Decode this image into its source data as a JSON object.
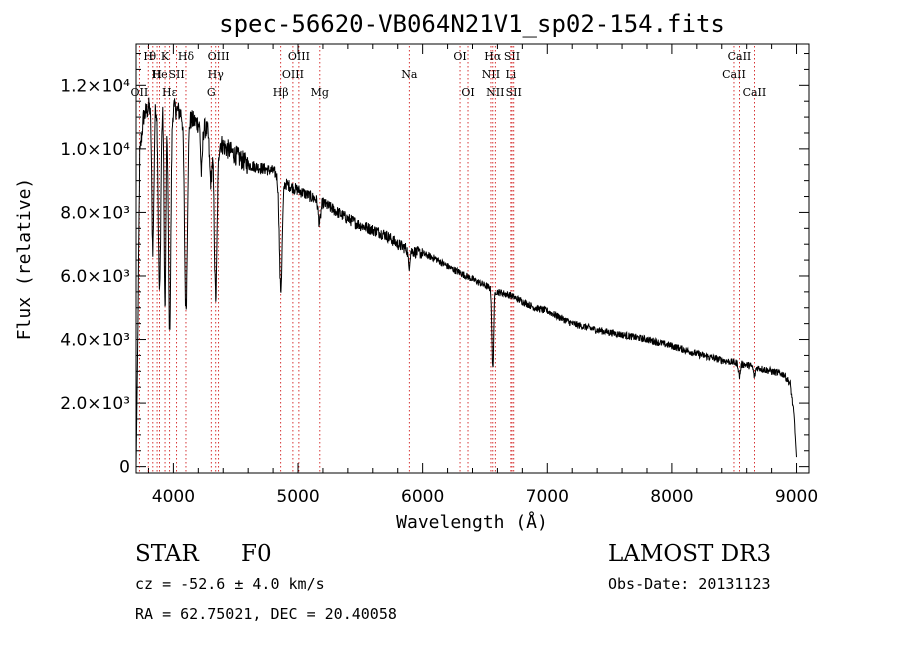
{
  "chart_data": {
    "type": "line",
    "title": "spec-56620-VB064N21V1_sp02-154.fits",
    "xlabel": "Wavelength (Å)",
    "ylabel": "Flux (relative)",
    "xlim": [
      3700,
      9100
    ],
    "ylim": [
      -200,
      13300
    ],
    "xticks": [
      {
        "value": 4000,
        "label": "4000"
      },
      {
        "value": 5000,
        "label": "5000"
      },
      {
        "value": 6000,
        "label": "6000"
      },
      {
        "value": 7000,
        "label": "7000"
      },
      {
        "value": 8000,
        "label": "8000"
      },
      {
        "value": 9000,
        "label": "9000"
      }
    ],
    "yticks": [
      {
        "value": 0,
        "label": "0"
      },
      {
        "value": 2000,
        "label": "2.0×10³"
      },
      {
        "value": 4000,
        "label": "4.0×10³"
      },
      {
        "value": 6000,
        "label": "6.0×10³"
      },
      {
        "value": 8000,
        "label": "8.0×10³"
      },
      {
        "value": 10000,
        "label": "1.0×10⁴"
      },
      {
        "value": 12000,
        "label": "1.2×10⁴"
      }
    ],
    "continuum": [
      [
        3700,
        0
      ],
      [
        3710,
        2800
      ],
      [
        3730,
        9800
      ],
      [
        3760,
        11000
      ],
      [
        3800,
        11300
      ],
      [
        3900,
        11500
      ],
      [
        4000,
        11300
      ],
      [
        4100,
        11000
      ],
      [
        4200,
        10800
      ],
      [
        4300,
        10500
      ],
      [
        4400,
        10100
      ],
      [
        4500,
        9800
      ],
      [
        4600,
        9500
      ],
      [
        4700,
        9400
      ],
      [
        4800,
        9300
      ],
      [
        4900,
        8900
      ],
      [
        5000,
        8700
      ],
      [
        5100,
        8500
      ],
      [
        5200,
        8300
      ],
      [
        5300,
        8050
      ],
      [
        5400,
        7800
      ],
      [
        5500,
        7600
      ],
      [
        5600,
        7450
      ],
      [
        5700,
        7300
      ],
      [
        5800,
        7000
      ],
      [
        5900,
        6800
      ],
      [
        6000,
        6700
      ],
      [
        6100,
        6550
      ],
      [
        6200,
        6300
      ],
      [
        6300,
        6100
      ],
      [
        6400,
        5900
      ],
      [
        6500,
        5700
      ],
      [
        6600,
        5500
      ],
      [
        6700,
        5400
      ],
      [
        6800,
        5200
      ],
      [
        6900,
        5000
      ],
      [
        7000,
        4900
      ],
      [
        7200,
        4500
      ],
      [
        7400,
        4300
      ],
      [
        7600,
        4150
      ],
      [
        7800,
        4000
      ],
      [
        8000,
        3800
      ],
      [
        8200,
        3550
      ],
      [
        8400,
        3350
      ],
      [
        8600,
        3200
      ],
      [
        8700,
        3100
      ],
      [
        8800,
        3000
      ],
      [
        8900,
        2900
      ],
      [
        8950,
        2600
      ],
      [
        8980,
        1600
      ],
      [
        9000,
        300
      ]
    ],
    "absorption_features": [
      {
        "center": 3835,
        "depth": 4500,
        "width": 12
      },
      {
        "center": 3889,
        "depth": 6000,
        "width": 14
      },
      {
        "center": 3933,
        "depth": 6500,
        "width": 10
      },
      {
        "center": 3970,
        "depth": 7000,
        "width": 14
      },
      {
        "center": 4101,
        "depth": 6000,
        "width": 16
      },
      {
        "center": 4226,
        "depth": 1500,
        "width": 10
      },
      {
        "center": 4300,
        "depth": 1500,
        "width": 14
      },
      {
        "center": 4340,
        "depth": 5000,
        "width": 16
      },
      {
        "center": 4861,
        "depth": 3500,
        "width": 16
      },
      {
        "center": 5172,
        "depth": 700,
        "width": 14
      },
      {
        "center": 5890,
        "depth": 500,
        "width": 10
      },
      {
        "center": 6563,
        "depth": 2500,
        "width": 10
      },
      {
        "center": 8542,
        "depth": 400,
        "width": 10
      },
      {
        "center": 8662,
        "depth": 300,
        "width": 10
      }
    ],
    "reference_lines": [
      {
        "wavelength": 3727,
        "label": "OII",
        "row": 3
      },
      {
        "wavelength": 3798,
        "label": "H",
        "row": 1
      },
      {
        "wavelength": 3835,
        "label": "θ",
        "row": 1
      },
      {
        "wavelength": 3869,
        "label": "H",
        "row": 2
      },
      {
        "wavelength": 3889,
        "label": "He",
        "row": 2
      },
      {
        "wavelength": 3933,
        "label": "K",
        "row": 1
      },
      {
        "wavelength": 3970,
        "label": "Hε",
        "row": 3
      },
      {
        "wavelength": 4026,
        "label": "SII",
        "row": 2
      },
      {
        "wavelength": 4101,
        "label": "Hδ",
        "row": 1
      },
      {
        "wavelength": 4304,
        "label": "G",
        "row": 3
      },
      {
        "wavelength": 4340,
        "label": "Hγ",
        "row": 2
      },
      {
        "wavelength": 4363,
        "label": "OIII",
        "row": 1
      },
      {
        "wavelength": 4861,
        "label": "Hβ",
        "row": 3
      },
      {
        "wavelength": 4959,
        "label": "OIII",
        "row": 2
      },
      {
        "wavelength": 5007,
        "label": "OIII",
        "row": 1
      },
      {
        "wavelength": 5175,
        "label": "Mg",
        "row": 3
      },
      {
        "wavelength": 5893,
        "label": "Na",
        "row": 2
      },
      {
        "wavelength": 6300,
        "label": "OI",
        "row": 1
      },
      {
        "wavelength": 6364,
        "label": "OI",
        "row": 3
      },
      {
        "wavelength": 6548,
        "label": "NII",
        "row": 2
      },
      {
        "wavelength": 6563,
        "label": "Hα",
        "row": 1
      },
      {
        "wavelength": 6583,
        "label": "NII",
        "row": 3
      },
      {
        "wavelength": 6708,
        "label": "Li",
        "row": 2
      },
      {
        "wavelength": 6717,
        "label": "SII",
        "row": 1
      },
      {
        "wavelength": 6731,
        "label": "SII",
        "row": 3
      },
      {
        "wavelength": 8498,
        "label": "CaII",
        "row": 2
      },
      {
        "wavelength": 8542,
        "label": "CaII",
        "row": 1
      },
      {
        "wavelength": 8662,
        "label": "CaII",
        "row": 3
      }
    ]
  },
  "info": {
    "object_class": "STAR",
    "subclass": "F0",
    "redshift": "cz = -52.6 ± 4.0 km/s",
    "coords": "RA =  62.75021, DEC =  20.40058",
    "survey": "LAMOST DR3",
    "obs_date": "Obs-Date: 20131123"
  }
}
